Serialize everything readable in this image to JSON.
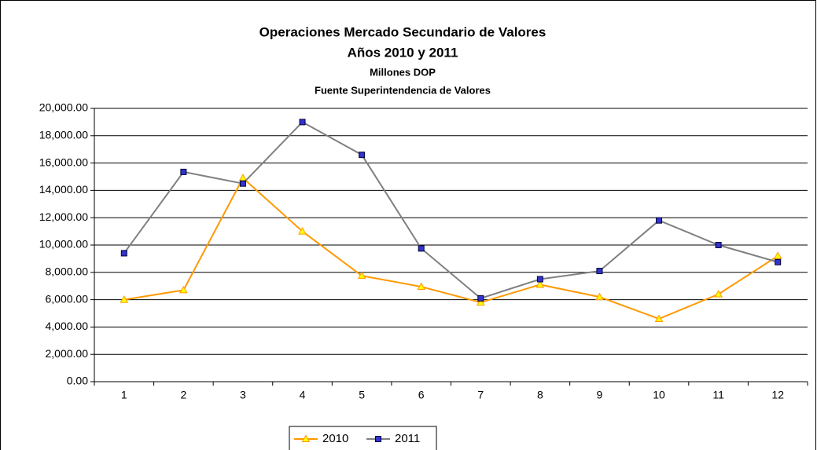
{
  "chart_data": {
    "type": "line",
    "title": "Operaciones Mercado Secundario de Valores",
    "subtitle": "Años 2010 y 2011",
    "units": "Millones DOP",
    "source": "Fuente Superintendencia de Valores",
    "categories": [
      "1",
      "2",
      "3",
      "4",
      "5",
      "6",
      "7",
      "8",
      "9",
      "10",
      "11",
      "12"
    ],
    "series": [
      {
        "name": "2010",
        "color": "#ff9900",
        "marker": "triangle",
        "marker_color": "#ffff00",
        "values": [
          6000,
          6700,
          14900,
          11000,
          7750,
          6950,
          5800,
          7100,
          6200,
          4600,
          6400,
          9200
        ]
      },
      {
        "name": "2011",
        "color": "#808080",
        "marker": "square",
        "marker_color": "#3333cc",
        "values": [
          9400,
          15350,
          14500,
          19000,
          16600,
          9750,
          6100,
          7500,
          8100,
          11800,
          10000,
          8750
        ]
      }
    ],
    "ylim": [
      0,
      20000
    ],
    "yticks": [
      {
        "value": 0,
        "label": "0.00"
      },
      {
        "value": 2000,
        "label": "2,000.00"
      },
      {
        "value": 4000,
        "label": "4,000.00"
      },
      {
        "value": 6000,
        "label": "6,000.00"
      },
      {
        "value": 8000,
        "label": "8,000.00"
      },
      {
        "value": 10000,
        "label": "10,000.00"
      },
      {
        "value": 12000,
        "label": "12,000.00"
      },
      {
        "value": 14000,
        "label": "14,000.00"
      },
      {
        "value": 16000,
        "label": "16,000.00"
      },
      {
        "value": 18000,
        "label": "18,000.00"
      },
      {
        "value": 20000,
        "label": "20,000.00"
      }
    ],
    "grid": true,
    "legend": "bottom"
  }
}
